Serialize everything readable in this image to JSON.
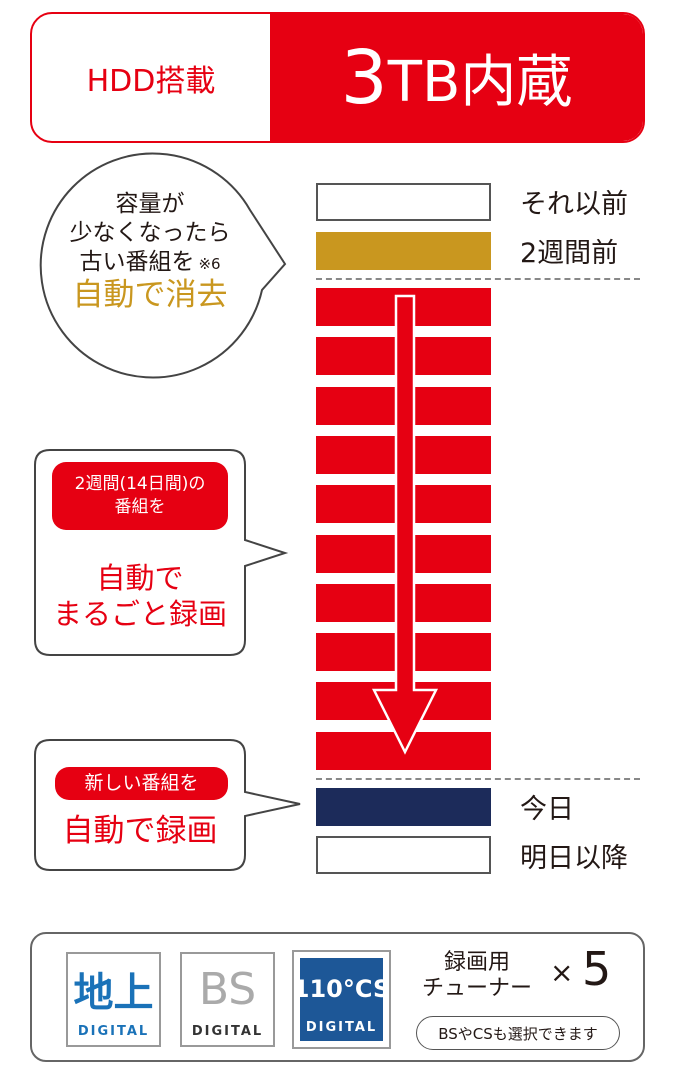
{
  "header": {
    "left": "HDD搭載",
    "capacity_number": "3",
    "capacity_rest": "TB内蔵"
  },
  "timeline": {
    "before": "それ以前",
    "two_weeks": "2週間前",
    "today": "今日",
    "after": "明日以降",
    "red_bar_count": 10
  },
  "bubble_delete": {
    "line1": "容量が",
    "line2": "少なくなったら",
    "line3": "古い番組を",
    "note": "※6",
    "highlight": "自動で消去"
  },
  "bubble_twoweeks": {
    "pill_line1": "2週間(14日間)の",
    "pill_line2": "番組を",
    "line1": "自動で",
    "line2": "まるごと録画"
  },
  "bubble_new": {
    "pill": "新しい番組を",
    "highlight": "自動で録画"
  },
  "footer": {
    "logos": [
      {
        "mark": "地上",
        "sub": "DIGITAL"
      },
      {
        "mark": "BS",
        "sub": "DIGITAL"
      },
      {
        "mark": "110°CS",
        "sub": "DIGITAL"
      }
    ],
    "tuner_line1": "録画用",
    "tuner_line2": "チューナー",
    "times": "×",
    "count": "5",
    "note": "BSやCSも選択できます"
  },
  "colors": {
    "red": "#e60012",
    "gold": "#c9971f",
    "navy": "#1c2b5a",
    "blue": "#1a72b8"
  }
}
